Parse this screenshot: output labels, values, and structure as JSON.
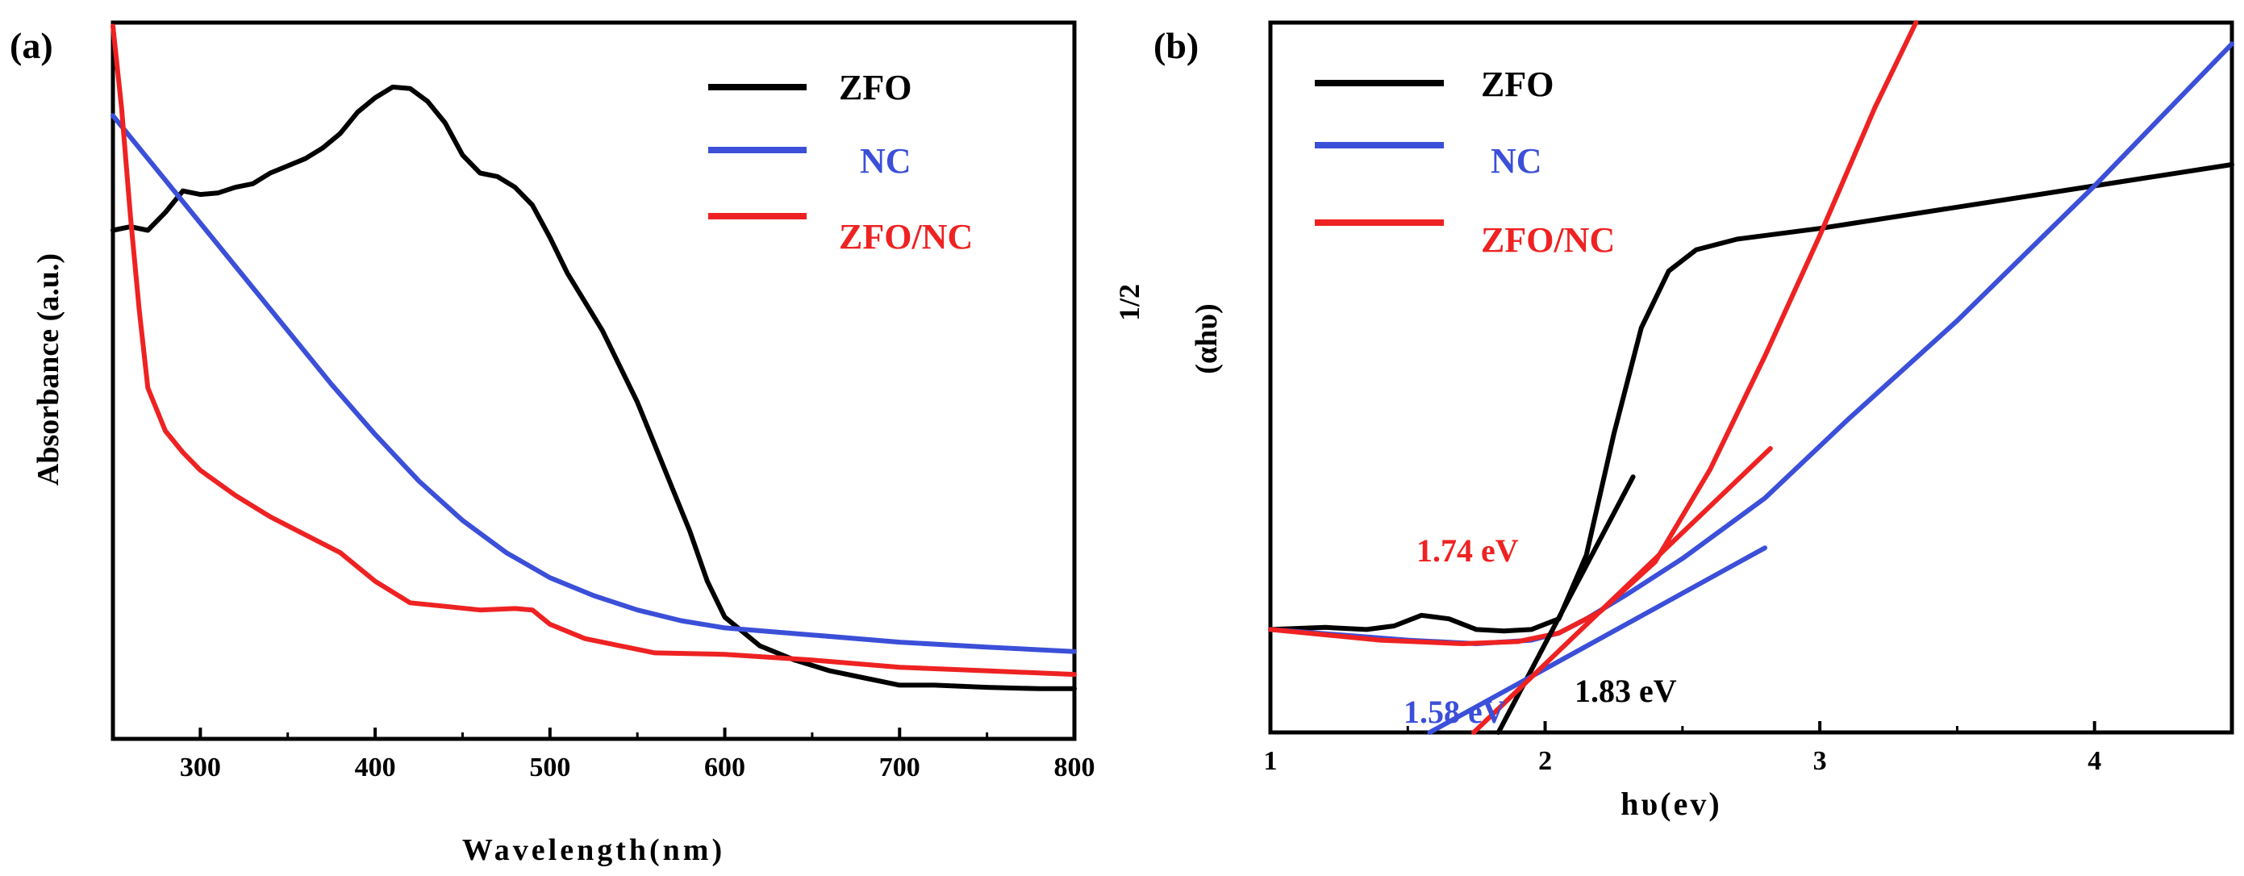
{
  "chart_data": [
    {
      "panel_label": "(a)",
      "type": "line",
      "xlabel": "Wavelength(nm)",
      "ylabel": "Absorbance (a.u.)",
      "xlim": [
        250,
        800
      ],
      "ylim": [
        0,
        1
      ],
      "xticks": [
        300,
        400,
        500,
        600,
        700,
        800
      ],
      "legend_position": "top-right",
      "series": [
        {
          "name": "ZFO",
          "color": "#000000",
          "points": [
            [
              250,
              0.71
            ],
            [
              260,
              0.715
            ],
            [
              270,
              0.71
            ],
            [
              280,
              0.735
            ],
            [
              290,
              0.765
            ],
            [
              300,
              0.76
            ],
            [
              310,
              0.762
            ],
            [
              320,
              0.77
            ],
            [
              330,
              0.775
            ],
            [
              340,
              0.79
            ],
            [
              350,
              0.8
            ],
            [
              360,
              0.81
            ],
            [
              370,
              0.825
            ],
            [
              380,
              0.845
            ],
            [
              390,
              0.875
            ],
            [
              400,
              0.895
            ],
            [
              410,
              0.91
            ],
            [
              420,
              0.908
            ],
            [
              430,
              0.89
            ],
            [
              440,
              0.86
            ],
            [
              450,
              0.815
            ],
            [
              460,
              0.79
            ],
            [
              470,
              0.785
            ],
            [
              480,
              0.77
            ],
            [
              490,
              0.745
            ],
            [
              500,
              0.7
            ],
            [
              510,
              0.65
            ],
            [
              520,
              0.61
            ],
            [
              530,
              0.57
            ],
            [
              540,
              0.52
            ],
            [
              550,
              0.47
            ],
            [
              560,
              0.41
            ],
            [
              570,
              0.35
            ],
            [
              580,
              0.29
            ],
            [
              590,
              0.22
            ],
            [
              600,
              0.17
            ],
            [
              620,
              0.13
            ],
            [
              640,
              0.11
            ],
            [
              660,
              0.095
            ],
            [
              680,
              0.085
            ],
            [
              700,
              0.075
            ],
            [
              720,
              0.075
            ],
            [
              750,
              0.072
            ],
            [
              780,
              0.07
            ],
            [
              800,
              0.07
            ]
          ]
        },
        {
          "name": "NC",
          "color": "#3b4fd8",
          "points": [
            [
              250,
              0.87
            ],
            [
              275,
              0.795
            ],
            [
              300,
              0.72
            ],
            [
              325,
              0.645
            ],
            [
              350,
              0.57
            ],
            [
              375,
              0.495
            ],
            [
              400,
              0.425
            ],
            [
              425,
              0.36
            ],
            [
              450,
              0.305
            ],
            [
              475,
              0.26
            ],
            [
              500,
              0.225
            ],
            [
              525,
              0.2
            ],
            [
              550,
              0.18
            ],
            [
              575,
              0.165
            ],
            [
              600,
              0.155
            ],
            [
              650,
              0.145
            ],
            [
              700,
              0.135
            ],
            [
              750,
              0.128
            ],
            [
              800,
              0.122
            ]
          ]
        },
        {
          "name": "ZFO/NC",
          "color": "#ee2222",
          "points": [
            [
              250,
              0.995
            ],
            [
              255,
              0.88
            ],
            [
              260,
              0.73
            ],
            [
              265,
              0.6
            ],
            [
              270,
              0.49
            ],
            [
              280,
              0.43
            ],
            [
              290,
              0.4
            ],
            [
              300,
              0.375
            ],
            [
              320,
              0.34
            ],
            [
              340,
              0.31
            ],
            [
              360,
              0.285
            ],
            [
              380,
              0.26
            ],
            [
              400,
              0.22
            ],
            [
              420,
              0.19
            ],
            [
              440,
              0.185
            ],
            [
              460,
              0.18
            ],
            [
              480,
              0.182
            ],
            [
              490,
              0.18
            ],
            [
              500,
              0.16
            ],
            [
              520,
              0.14
            ],
            [
              540,
              0.13
            ],
            [
              560,
              0.12
            ],
            [
              600,
              0.118
            ],
            [
              650,
              0.11
            ],
            [
              700,
              0.1
            ],
            [
              750,
              0.095
            ],
            [
              800,
              0.09
            ]
          ]
        }
      ]
    },
    {
      "panel_label": "(b)",
      "type": "line",
      "xlabel": "hυ(ev)",
      "ylabel": "(αhυ)",
      "ylabel_superscript": "1/2",
      "xlim": [
        1,
        4.5
      ],
      "ylim": [
        0,
        1
      ],
      "xticks": [
        1,
        2,
        3,
        4
      ],
      "legend_position": "top-left",
      "series": [
        {
          "name": "ZFO",
          "color": "#000000",
          "points": [
            [
              1.0,
              0.145
            ],
            [
              1.2,
              0.148
            ],
            [
              1.35,
              0.145
            ],
            [
              1.45,
              0.15
            ],
            [
              1.55,
              0.165
            ],
            [
              1.65,
              0.16
            ],
            [
              1.75,
              0.145
            ],
            [
              1.85,
              0.143
            ],
            [
              1.95,
              0.145
            ],
            [
              2.05,
              0.16
            ],
            [
              2.15,
              0.25
            ],
            [
              2.25,
              0.42
            ],
            [
              2.35,
              0.57
            ],
            [
              2.45,
              0.65
            ],
            [
              2.55,
              0.68
            ],
            [
              2.7,
              0.695
            ],
            [
              3.0,
              0.71
            ],
            [
              3.5,
              0.74
            ],
            [
              4.0,
              0.77
            ],
            [
              4.5,
              0.8
            ]
          ]
        },
        {
          "name": "NC",
          "color": "#3b4fd8",
          "points": [
            [
              1.0,
              0.145
            ],
            [
              1.5,
              0.13
            ],
            [
              1.75,
              0.125
            ],
            [
              1.95,
              0.13
            ],
            [
              2.05,
              0.14
            ],
            [
              2.15,
              0.16
            ],
            [
              2.3,
              0.195
            ],
            [
              2.5,
              0.245
            ],
            [
              2.8,
              0.33
            ],
            [
              3.1,
              0.44
            ],
            [
              3.5,
              0.58
            ],
            [
              4.0,
              0.77
            ],
            [
              4.5,
              0.97
            ]
          ]
        },
        {
          "name": "ZFO/NC",
          "color": "#ee2222",
          "points": [
            [
              1.0,
              0.145
            ],
            [
              1.4,
              0.13
            ],
            [
              1.7,
              0.125
            ],
            [
              1.9,
              0.128
            ],
            [
              2.05,
              0.14
            ],
            [
              2.2,
              0.17
            ],
            [
              2.4,
              0.24
            ],
            [
              2.6,
              0.37
            ],
            [
              2.8,
              0.53
            ],
            [
              3.0,
              0.7
            ],
            [
              3.2,
              0.88
            ],
            [
              3.35,
              1.0
            ]
          ]
        }
      ],
      "tangents": [
        {
          "color": "#000000",
          "from": [
            1.83,
            0
          ],
          "to": [
            2.32,
            0.36
          ],
          "label": "1.83 eV"
        },
        {
          "color": "#3b4fd8",
          "from": [
            1.58,
            0
          ],
          "to": [
            2.8,
            0.26
          ],
          "label": "1.58 eV"
        },
        {
          "color": "#ee2222",
          "from": [
            1.74,
            0
          ],
          "to": [
            2.82,
            0.4
          ],
          "label": "1.74 eV"
        }
      ]
    }
  ]
}
